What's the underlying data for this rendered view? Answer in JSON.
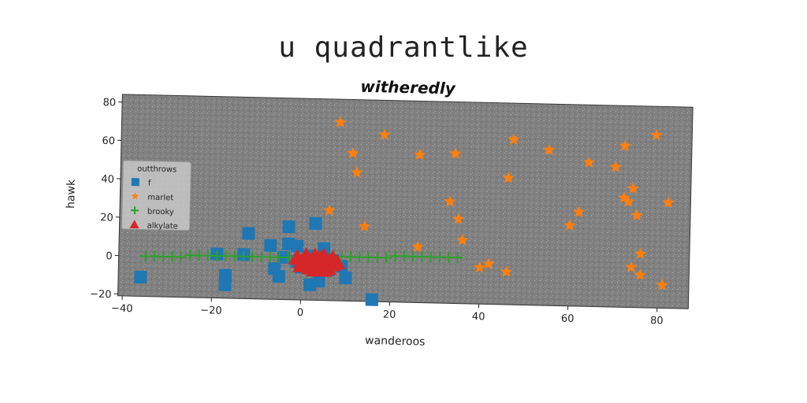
{
  "suptitle": "u quadrantlike",
  "chart_data": {
    "type": "scatter",
    "title": "witheredly",
    "xlabel": "wanderoos",
    "ylabel": "hawk",
    "xlim": [
      -41,
      87
    ],
    "ylim": [
      -21,
      84
    ],
    "xticks": [
      -40,
      -20,
      0,
      20,
      40,
      60,
      80
    ],
    "yticks": [
      -20,
      0,
      20,
      40,
      60,
      80
    ],
    "grid": false,
    "legend": {
      "title": "outthrows",
      "position": "center-left"
    },
    "series": [
      {
        "name": "f",
        "marker": "square",
        "color": "#1f77b4",
        "points": [
          [
            -36,
            -11
          ],
          [
            -19,
            2
          ],
          [
            -17,
            -9
          ],
          [
            -17,
            -14
          ],
          [
            -12,
            13
          ],
          [
            -13,
            2
          ],
          [
            -7,
            7
          ],
          [
            -6,
            -5
          ],
          [
            -4,
            1
          ],
          [
            -3,
            8
          ],
          [
            -3,
            17
          ],
          [
            -1,
            7
          ],
          [
            -5,
            -9
          ],
          [
            0,
            -4
          ],
          [
            2,
            2
          ],
          [
            3,
            19
          ],
          [
            5,
            6
          ],
          [
            6,
            -5
          ],
          [
            7,
            0
          ],
          [
            10,
            -9
          ],
          [
            2,
            -13
          ],
          [
            4,
            -11
          ],
          [
            16,
            -20
          ],
          [
            9,
            -3
          ],
          [
            -1,
            -1
          ]
        ]
      },
      {
        "name": "marlet",
        "marker": "star",
        "color": "#ff7f0e",
        "points": [
          [
            8,
            72
          ],
          [
            11,
            56
          ],
          [
            12,
            46
          ],
          [
            18,
            66
          ],
          [
            26,
            56
          ],
          [
            34,
            57
          ],
          [
            47,
            65
          ],
          [
            55,
            60
          ],
          [
            64,
            54
          ],
          [
            72,
            63
          ],
          [
            79,
            69
          ],
          [
            70,
            52
          ],
          [
            72,
            36
          ],
          [
            74,
            41
          ],
          [
            73,
            34
          ],
          [
            75,
            27
          ],
          [
            82,
            34
          ],
          [
            62,
            28
          ],
          [
            60,
            21
          ],
          [
            76,
            7
          ],
          [
            74,
            0
          ],
          [
            76,
            -4
          ],
          [
            81,
            -9
          ],
          [
            6,
            26
          ],
          [
            14,
            18
          ],
          [
            33,
            32
          ],
          [
            35,
            23
          ],
          [
            36,
            12
          ],
          [
            26,
            8
          ],
          [
            40,
            -2
          ],
          [
            42,
            0
          ],
          [
            46,
            -4
          ],
          [
            46,
            45
          ]
        ]
      },
      {
        "name": "brooky",
        "marker": "plus",
        "color": "#2ca02c",
        "points": [
          [
            -35,
            0
          ],
          [
            -33,
            0
          ],
          [
            -31,
            0
          ],
          [
            -29,
            0
          ],
          [
            -27,
            0
          ],
          [
            -25,
            1
          ],
          [
            -23,
            1
          ],
          [
            -21,
            1
          ],
          [
            -19,
            1
          ],
          [
            -17,
            1
          ],
          [
            -15,
            1
          ],
          [
            -13,
            1
          ],
          [
            -11,
            1
          ],
          [
            -9,
            1
          ],
          [
            -7,
            1
          ],
          [
            -5,
            1
          ],
          [
            -3,
            1
          ],
          [
            -1,
            1
          ],
          [
            1,
            1
          ],
          [
            3,
            1
          ],
          [
            5,
            2
          ],
          [
            7,
            2
          ],
          [
            9,
            2
          ],
          [
            11,
            2
          ],
          [
            13,
            2
          ],
          [
            15,
            2
          ],
          [
            17,
            2
          ],
          [
            19,
            2
          ],
          [
            21,
            3
          ],
          [
            23,
            3
          ],
          [
            25,
            3
          ],
          [
            27,
            3
          ],
          [
            29,
            3
          ],
          [
            31,
            3
          ],
          [
            33,
            3
          ],
          [
            35,
            3
          ]
        ]
      },
      {
        "name": "alkylate",
        "marker": "triangle",
        "color": "#d62728",
        "points": [
          [
            0,
            -1
          ],
          [
            1,
            0
          ],
          [
            2,
            -1
          ],
          [
            3,
            0
          ],
          [
            4,
            -1
          ],
          [
            5,
            0
          ],
          [
            6,
            -1
          ],
          [
            7,
            -2
          ],
          [
            1,
            2
          ],
          [
            3,
            2
          ],
          [
            5,
            2
          ],
          [
            2,
            -4
          ],
          [
            4,
            -3
          ],
          [
            6,
            -4
          ],
          [
            0,
            -3
          ],
          [
            7,
            1
          ],
          [
            -1,
            1
          ],
          [
            8,
            -1
          ],
          [
            3,
            -5
          ],
          [
            5,
            -5
          ],
          [
            1,
            -2
          ],
          [
            4,
            1
          ]
        ]
      }
    ]
  }
}
